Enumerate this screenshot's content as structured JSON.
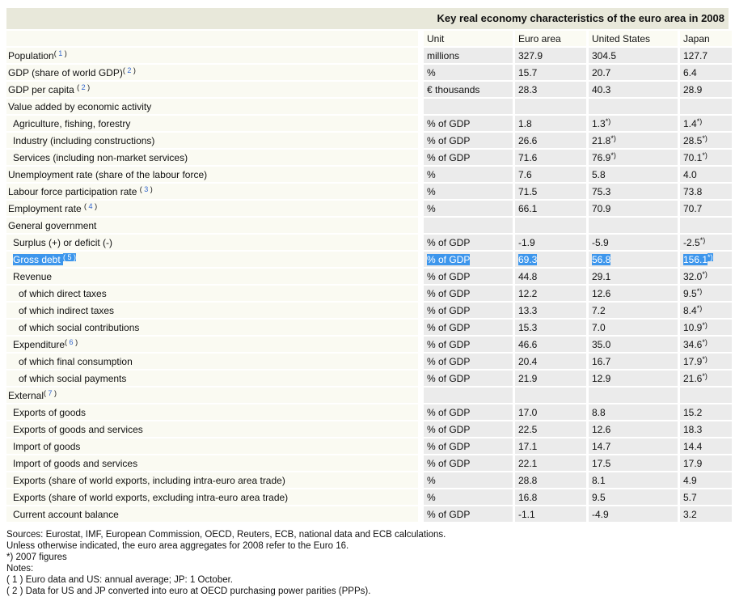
{
  "title": "Key real economy characteristics of the euro area in 2008",
  "table": {
    "columns": [
      "Unit",
      "Euro area",
      "United States",
      "Japan"
    ],
    "star_symbol": "*)",
    "rows": [
      {
        "label": "Population",
        "sup": "1",
        "indent": 0,
        "cells": [
          {
            "t": "millions"
          },
          {
            "t": "327.9"
          },
          {
            "t": "304.5"
          },
          {
            "t": "127.7"
          }
        ]
      },
      {
        "label": "GDP (share of world GDP)",
        "sup": "2",
        "indent": 0,
        "cells": [
          {
            "t": "%"
          },
          {
            "t": "15.7"
          },
          {
            "t": "20.7"
          },
          {
            "t": "6.4"
          }
        ]
      },
      {
        "label": "GDP per capita",
        "sup": "2",
        "gap": true,
        "indent": 0,
        "cells": [
          {
            "t": "€ thousands"
          },
          {
            "t": "28.3"
          },
          {
            "t": "40.3"
          },
          {
            "t": "28.9"
          }
        ]
      },
      {
        "label": "Value added by economic activity",
        "indent": 0,
        "section": true
      },
      {
        "label": "Agriculture, fishing, forestry",
        "indent": 1,
        "cells": [
          {
            "t": "% of GDP"
          },
          {
            "t": "1.8"
          },
          {
            "t": "1.3",
            "star": true
          },
          {
            "t": "1.4",
            "star": true
          }
        ]
      },
      {
        "label": "Industry (including constructions)",
        "indent": 1,
        "cells": [
          {
            "t": "% of GDP"
          },
          {
            "t": "26.6"
          },
          {
            "t": "21.8",
            "star": true
          },
          {
            "t": "28.5",
            "star": true
          }
        ]
      },
      {
        "label": "Services (including non-market services)",
        "indent": 1,
        "cells": [
          {
            "t": "% of GDP"
          },
          {
            "t": "71.6"
          },
          {
            "t": "76.9",
            "star": true
          },
          {
            "t": "70.1",
            "star": true
          }
        ]
      },
      {
        "label": "Unemployment rate (share of the labour force)",
        "indent": 0,
        "cells": [
          {
            "t": "%"
          },
          {
            "t": "7.6"
          },
          {
            "t": "5.8"
          },
          {
            "t": "4.0"
          }
        ]
      },
      {
        "label": "Labour force participation rate",
        "sup": "3",
        "gap": true,
        "indent": 0,
        "cells": [
          {
            "t": "%"
          },
          {
            "t": "71.5"
          },
          {
            "t": "75.3"
          },
          {
            "t": "73.8"
          }
        ]
      },
      {
        "label": "Employment rate",
        "sup": "4",
        "gap": true,
        "indent": 0,
        "cells": [
          {
            "t": "%"
          },
          {
            "t": "66.1"
          },
          {
            "t": "70.9"
          },
          {
            "t": "70.7"
          }
        ]
      },
      {
        "label": "General government",
        "indent": 0,
        "section": true
      },
      {
        "label": "Surplus (+) or deficit (-)",
        "indent": 1,
        "cells": [
          {
            "t": "% of GDP"
          },
          {
            "t": "-1.9"
          },
          {
            "t": "-5.9"
          },
          {
            "t": "-2.5",
            "star": true
          }
        ]
      },
      {
        "label": "Gross debt",
        "sup": "5",
        "gap": true,
        "indent": 1,
        "selected": true,
        "cells": [
          {
            "t": "% of GDP"
          },
          {
            "t": "69.3"
          },
          {
            "t": "56.8"
          },
          {
            "t": "156.1",
            "star": true
          }
        ]
      },
      {
        "label": "Revenue",
        "indent": 1,
        "cells": [
          {
            "t": "% of GDP"
          },
          {
            "t": "44.8"
          },
          {
            "t": "29.1"
          },
          {
            "t": "32.0",
            "star": true
          }
        ]
      },
      {
        "label": "of which direct taxes",
        "indent": 2,
        "cells": [
          {
            "t": "% of GDP"
          },
          {
            "t": "12.2"
          },
          {
            "t": "12.6"
          },
          {
            "t": "9.5",
            "star": true
          }
        ]
      },
      {
        "label": "of which indirect taxes",
        "indent": 2,
        "cells": [
          {
            "t": "% of GDP"
          },
          {
            "t": "13.3"
          },
          {
            "t": "7.2"
          },
          {
            "t": "8.4",
            "star": true
          }
        ]
      },
      {
        "label": "of which social contributions",
        "indent": 2,
        "cells": [
          {
            "t": "% of GDP"
          },
          {
            "t": "15.3"
          },
          {
            "t": "7.0"
          },
          {
            "t": "10.9",
            "star": true
          }
        ]
      },
      {
        "label": "Expenditure",
        "sup": "6",
        "indent": 1,
        "cells": [
          {
            "t": "% of GDP"
          },
          {
            "t": "46.6"
          },
          {
            "t": "35.0"
          },
          {
            "t": "34.6",
            "star": true
          }
        ]
      },
      {
        "label": "of which final consumption",
        "indent": 2,
        "cells": [
          {
            "t": "% of GDP"
          },
          {
            "t": "20.4"
          },
          {
            "t": "16.7"
          },
          {
            "t": "17.9",
            "star": true
          }
        ]
      },
      {
        "label": "of which social payments",
        "indent": 2,
        "cells": [
          {
            "t": "% of GDP"
          },
          {
            "t": "21.9"
          },
          {
            "t": "12.9"
          },
          {
            "t": "21.6",
            "star": true
          }
        ]
      },
      {
        "label": "External",
        "sup": "7",
        "indent": 0,
        "section": true
      },
      {
        "label": "Exports of goods",
        "indent": 1,
        "cells": [
          {
            "t": "% of GDP"
          },
          {
            "t": "17.0"
          },
          {
            "t": "8.8"
          },
          {
            "t": "15.2"
          }
        ]
      },
      {
        "label": "Exports of goods and services",
        "indent": 1,
        "cells": [
          {
            "t": "% of GDP"
          },
          {
            "t": "22.5"
          },
          {
            "t": "12.6"
          },
          {
            "t": "18.3"
          }
        ]
      },
      {
        "label": "Import of goods",
        "indent": 1,
        "cells": [
          {
            "t": "% of GDP"
          },
          {
            "t": "17.1"
          },
          {
            "t": "14.7"
          },
          {
            "t": "14.4"
          }
        ]
      },
      {
        "label": "Import of goods and services",
        "indent": 1,
        "cells": [
          {
            "t": "% of GDP"
          },
          {
            "t": "22.1"
          },
          {
            "t": "17.5"
          },
          {
            "t": "17.9"
          }
        ]
      },
      {
        "label": "Exports (share of world exports, including intra-euro area trade)",
        "indent": 1,
        "cells": [
          {
            "t": "%"
          },
          {
            "t": "28.8"
          },
          {
            "t": "8.1"
          },
          {
            "t": "4.9"
          }
        ]
      },
      {
        "label": "Exports (share of world exports, excluding intra-euro area trade)",
        "indent": 1,
        "cells": [
          {
            "t": "%"
          },
          {
            "t": "16.8"
          },
          {
            "t": "9.5"
          },
          {
            "t": "5.7"
          }
        ]
      },
      {
        "label": "Current account balance",
        "indent": 1,
        "cells": [
          {
            "t": "% of GDP"
          },
          {
            "t": "-1.1"
          },
          {
            "t": "-4.9"
          },
          {
            "t": "3.2"
          }
        ]
      }
    ]
  },
  "footnotes": {
    "lines": [
      "Sources: Eurostat, IMF, European Commission, OECD, Reuters, ECB, national data and ECB calculations.",
      "Unless otherwise indicated, the euro area aggregates for 2008 refer to the Euro 16.",
      "*) 2007 figures",
      "Notes:",
      "( 1 ) Euro data and US: annual average; JP: 1 October.",
      "( 2 ) Data for US and JP converted into euro at OECD purchasing power parities (PPPs)."
    ]
  },
  "colors": {
    "title_bar_bg": "#E8E8DA",
    "label_cell_bg": "#FAFAF2",
    "data_cell_bg": "#EBEBEB",
    "selection_highlight": "#3D96EC",
    "footnote_link": "#3366CC"
  }
}
